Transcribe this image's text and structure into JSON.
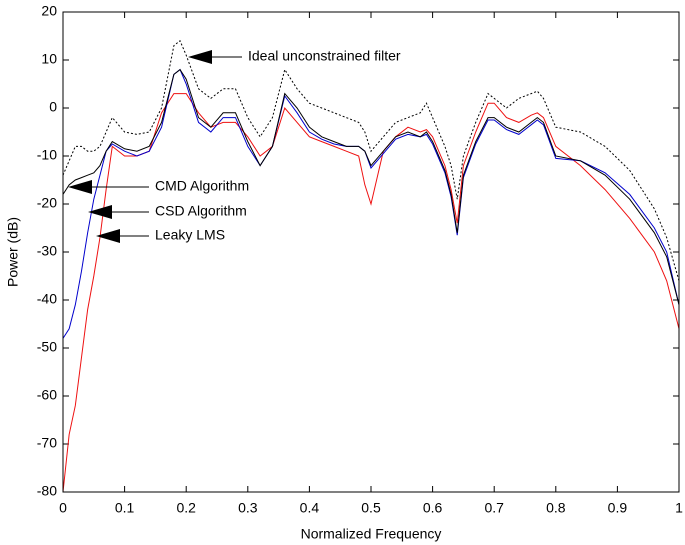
{
  "chart_data": {
    "type": "line",
    "xlabel": "Normalized Frequency",
    "ylabel": "Power (dB)",
    "x": [
      0,
      0.01,
      0.02,
      0.03,
      0.04,
      0.05,
      0.06,
      0.07,
      0.08,
      0.1,
      0.12,
      0.14,
      0.16,
      0.18,
      0.19,
      0.2,
      0.22,
      0.24,
      0.26,
      0.28,
      0.3,
      0.32,
      0.34,
      0.36,
      0.38,
      0.4,
      0.42,
      0.44,
      0.46,
      0.48,
      0.49,
      0.5,
      0.52,
      0.54,
      0.56,
      0.58,
      0.59,
      0.6,
      0.62,
      0.63,
      0.64,
      0.65,
      0.67,
      0.69,
      0.7,
      0.72,
      0.74,
      0.76,
      0.77,
      0.78,
      0.8,
      0.84,
      0.88,
      0.92,
      0.96,
      0.98,
      1
    ],
    "series": [
      {
        "name": "Ideal unconstrained filter",
        "color": "#000000",
        "dash": true,
        "values": [
          -14,
          -11,
          -8,
          -8,
          -9,
          -9,
          -8,
          -5,
          -2,
          -5,
          -5.5,
          -5,
          0,
          13,
          14,
          11,
          4,
          2,
          4,
          4,
          -2,
          -6,
          -2,
          8,
          4,
          1,
          0,
          -1,
          -2,
          -3,
          -5,
          -9,
          -6,
          -3,
          -2,
          -1,
          1,
          -2,
          -8,
          -12,
          -19,
          -10,
          -3,
          3,
          2,
          0,
          2,
          3,
          3.5,
          2,
          -4,
          -5,
          -8,
          -13,
          -21,
          -27,
          -36
        ]
      },
      {
        "name": "CMD Algorithm",
        "color": "#000000",
        "values": [
          -18,
          -16,
          -15,
          -14.5,
          -14,
          -13.5,
          -12,
          -9,
          -7,
          -8.5,
          -9,
          -8,
          -3,
          7,
          8,
          6,
          -2,
          -4,
          -1,
          -1,
          -7,
          -12,
          -8,
          3,
          0,
          -4,
          -6,
          -7,
          -8,
          -8,
          -9,
          -12,
          -9,
          -6,
          -5,
          -6,
          -5,
          -7,
          -13,
          -18,
          -26,
          -14,
          -7,
          -2,
          -2,
          -4,
          -5,
          -3,
          -2,
          -3,
          -10,
          -11,
          -14,
          -19,
          -26,
          -31,
          -41
        ]
      },
      {
        "name": "CSD Algorithm",
        "color": "#0000cc",
        "values": [
          -48,
          -46,
          -41,
          -34,
          -26,
          -19,
          -14,
          -9,
          -7.5,
          -9,
          -10,
          -9,
          -4,
          7,
          8,
          5,
          -3,
          -5,
          -2,
          -2,
          -8,
          -12,
          -8,
          2.5,
          -1,
          -5,
          -6.5,
          -7.5,
          -8,
          -8,
          -9,
          -12.5,
          -9.5,
          -6.5,
          -5.5,
          -6,
          -5.5,
          -7.5,
          -13.5,
          -18.5,
          -26.5,
          -14.5,
          -7.5,
          -2.5,
          -2.5,
          -4.5,
          -5.5,
          -3.5,
          -2.5,
          -3.5,
          -10.5,
          -11,
          -13.5,
          -18,
          -25,
          -30,
          -41
        ]
      },
      {
        "name": "Leaky LMS",
        "color": "#ee1111",
        "values": [
          -80,
          -68,
          -62,
          -52,
          -42,
          -35,
          -27,
          -17,
          -8,
          -10,
          -10,
          -9,
          -1,
          3,
          3,
          3,
          -1,
          -4,
          -3,
          -3,
          -6,
          -10,
          -8,
          0,
          -3,
          -6,
          -7,
          -8,
          -9,
          -10,
          -16,
          -20,
          -9,
          -6,
          -4,
          -5,
          -4.5,
          -6,
          -12,
          -17,
          -24,
          -12,
          -5,
          1,
          1,
          -2,
          -3,
          -1.5,
          -1,
          -2,
          -8,
          -12,
          -17,
          -23,
          -30,
          -36,
          -46
        ]
      }
    ],
    "xlim": [
      0,
      1
    ],
    "xticks": [
      0,
      0.1,
      0.2,
      0.3,
      0.4,
      0.5,
      0.6,
      0.7,
      0.8,
      0.9,
      1
    ],
    "ylim": [
      -80,
      20
    ],
    "yticks": [
      -80,
      -70,
      -60,
      -50,
      -40,
      -30,
      -20,
      -10,
      0,
      10,
      20
    ],
    "grid": false
  }
}
